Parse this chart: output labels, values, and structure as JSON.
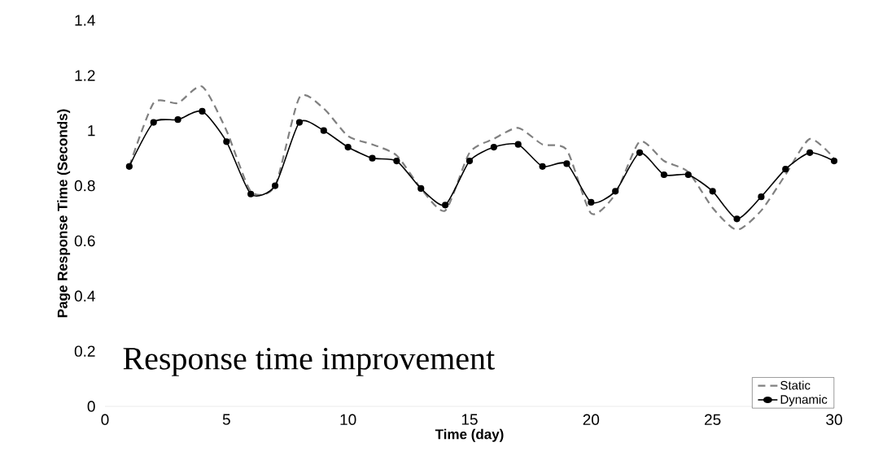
{
  "chart_data": {
    "type": "line",
    "xlabel": "Time (day)",
    "ylabel": "Page Response Time   (Seconds)",
    "annotations": [
      "Response time improvement"
    ],
    "x": [
      1,
      2,
      3,
      4,
      5,
      6,
      7,
      8,
      9,
      10,
      11,
      12,
      13,
      14,
      15,
      16,
      17,
      18,
      19,
      20,
      21,
      22,
      23,
      24,
      25,
      26,
      27,
      28,
      29,
      30
    ],
    "series": [
      {
        "name": "Static",
        "color": "#808080",
        "line_style": "dashed",
        "marker": "none",
        "values": [
          0.87,
          1.1,
          1.1,
          1.16,
          1.0,
          0.78,
          0.8,
          1.12,
          1.08,
          0.98,
          0.95,
          0.91,
          0.79,
          0.71,
          0.92,
          0.97,
          1.01,
          0.95,
          0.93,
          0.7,
          0.77,
          0.96,
          0.89,
          0.85,
          0.72,
          0.64,
          0.71,
          0.84,
          0.97,
          0.9
        ]
      },
      {
        "name": "Dynamic",
        "color": "#000000",
        "line_style": "solid",
        "marker": "circle",
        "values": [
          0.87,
          1.03,
          1.04,
          1.07,
          0.96,
          0.77,
          0.8,
          1.03,
          1.0,
          0.94,
          0.9,
          0.89,
          0.79,
          0.73,
          0.89,
          0.94,
          0.95,
          0.87,
          0.88,
          0.74,
          0.78,
          0.92,
          0.84,
          0.84,
          0.78,
          0.68,
          0.76,
          0.86,
          0.92,
          0.89
        ]
      }
    ],
    "xlim": [
      0,
      30
    ],
    "ylim": [
      0,
      1.4
    ],
    "xticks": [
      0,
      5,
      10,
      15,
      20,
      25,
      30
    ],
    "yticks": [
      0,
      0.2,
      0.4,
      0.6,
      0.8,
      1,
      1.2,
      1.4
    ],
    "legend": "bottom right",
    "grid": false
  }
}
